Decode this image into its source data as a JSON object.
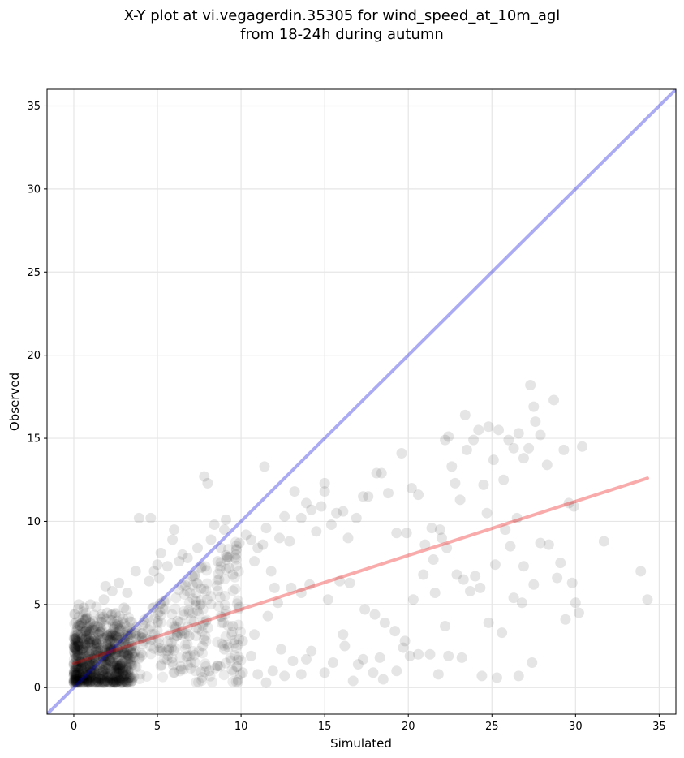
{
  "figure": {
    "title_line1": "X-Y plot at vi.vegagerdin.35305 for wind_speed_at_10m_agl",
    "title_line2": "from 18-24h during autumn"
  },
  "chart_data": {
    "type": "scatter",
    "title": "X-Y plot at vi.vegagerdin.35305 for wind_speed_at_10m_agl from 18-24h during autumn",
    "xlabel": "Simulated",
    "ylabel": "Observed",
    "xlim": [
      -1.6,
      36
    ],
    "ylim": [
      -1.6,
      36
    ],
    "xticks": [
      0,
      5,
      10,
      15,
      20,
      25,
      30,
      35
    ],
    "yticks": [
      0,
      5,
      10,
      15,
      20,
      25,
      30,
      35
    ],
    "grid": true,
    "colors": {
      "points": "#000000",
      "identity_line": "#0000dd",
      "fit_line": "#ee0000"
    },
    "identity_line": {
      "x": [
        -1.6,
        36
      ],
      "y": [
        -1.6,
        36
      ]
    },
    "fit_line": {
      "x": [
        0,
        34.3
      ],
      "y": [
        1.45,
        12.6
      ]
    },
    "point_groups": [
      {
        "name": "dense cluster near origin",
        "x": [
          0.0,
          3.5
        ],
        "y": [
          0.3,
          5.0
        ]
      }
    ],
    "points": [
      [
        0.5,
        3.6
      ],
      [
        0.8,
        4.2
      ],
      [
        1.2,
        2.8
      ],
      [
        1.5,
        3.2
      ],
      [
        2.0,
        4.5
      ],
      [
        2.5,
        3.8
      ],
      [
        3.0,
        4.8
      ],
      [
        1.0,
        5.0
      ],
      [
        0.3,
        5.0
      ],
      [
        1.9,
        6.1
      ],
      [
        3.2,
        5.7
      ],
      [
        3.7,
        7.0
      ],
      [
        2.3,
        5.8
      ],
      [
        0.6,
        4.8
      ],
      [
        1.8,
        5.3
      ],
      [
        2.7,
        6.3
      ],
      [
        3.9,
        10.2
      ],
      [
        4.6,
        10.2
      ],
      [
        4.5,
        6.4
      ],
      [
        4.8,
        7.0
      ],
      [
        5.0,
        7.4
      ],
      [
        5.1,
        6.6
      ],
      [
        5.2,
        8.1
      ],
      [
        5.6,
        7.3
      ],
      [
        5.9,
        8.9
      ],
      [
        6.0,
        9.5
      ],
      [
        6.3,
        7.6
      ],
      [
        6.5,
        8.0
      ],
      [
        6.8,
        7.8
      ],
      [
        7.1,
        6.7
      ],
      [
        7.4,
        8.4
      ],
      [
        7.6,
        7.2
      ],
      [
        7.8,
        12.7
      ],
      [
        8.0,
        12.3
      ],
      [
        8.2,
        8.9
      ],
      [
        8.4,
        9.8
      ],
      [
        8.6,
        7.6
      ],
      [
        8.8,
        8.4
      ],
      [
        9.0,
        9.5
      ],
      [
        9.1,
        10.1
      ],
      [
        9.3,
        7.2
      ],
      [
        9.5,
        6.8
      ],
      [
        9.7,
        8.0
      ],
      [
        9.9,
        8.7
      ],
      [
        6.2,
        4.0
      ],
      [
        6.9,
        3.1
      ],
      [
        7.3,
        5.2
      ],
      [
        7.7,
        2.5
      ],
      [
        8.1,
        1.0
      ],
      [
        8.6,
        1.3
      ],
      [
        9.0,
        2.3
      ],
      [
        9.5,
        3.7
      ],
      [
        10.1,
        2.8
      ],
      [
        10.3,
        9.2
      ],
      [
        10.6,
        8.9
      ],
      [
        10.8,
        7.6
      ],
      [
        11.0,
        8.4
      ],
      [
        11.3,
        8.6
      ],
      [
        11.5,
        9.6
      ],
      [
        11.8,
        7.0
      ],
      [
        12.0,
        6.0
      ],
      [
        12.3,
        9.0
      ],
      [
        12.6,
        10.3
      ],
      [
        12.9,
        8.8
      ],
      [
        11.4,
        13.3
      ],
      [
        13.2,
        11.8
      ],
      [
        13.6,
        10.2
      ],
      [
        13.9,
        11.1
      ],
      [
        14.2,
        10.7
      ],
      [
        14.5,
        9.4
      ],
      [
        14.8,
        10.9
      ],
      [
        15.0,
        11.8
      ],
      [
        15.0,
        12.3
      ],
      [
        15.4,
        9.8
      ],
      [
        15.7,
        10.5
      ],
      [
        16.1,
        10.6
      ],
      [
        16.4,
        9.0
      ],
      [
        16.9,
        10.2
      ],
      [
        17.3,
        11.5
      ],
      [
        17.6,
        11.5
      ],
      [
        18.1,
        12.9
      ],
      [
        18.4,
        12.9
      ],
      [
        18.8,
        11.7
      ],
      [
        19.3,
        9.3
      ],
      [
        19.6,
        14.1
      ],
      [
        19.9,
        9.3
      ],
      [
        20.2,
        12.0
      ],
      [
        20.6,
        11.6
      ],
      [
        21.0,
        8.6
      ],
      [
        21.4,
        9.6
      ],
      [
        21.9,
        9.5
      ],
      [
        22.2,
        14.9
      ],
      [
        22.4,
        15.1
      ],
      [
        22.6,
        13.3
      ],
      [
        22.8,
        12.3
      ],
      [
        23.1,
        11.3
      ],
      [
        23.4,
        16.4
      ],
      [
        23.5,
        14.3
      ],
      [
        23.9,
        14.9
      ],
      [
        24.2,
        15.5
      ],
      [
        24.5,
        12.2
      ],
      [
        24.8,
        15.7
      ],
      [
        25.1,
        13.7
      ],
      [
        25.4,
        15.5
      ],
      [
        25.7,
        12.5
      ],
      [
        26.0,
        14.9
      ],
      [
        26.3,
        14.4
      ],
      [
        26.6,
        15.3
      ],
      [
        26.9,
        13.8
      ],
      [
        27.2,
        14.4
      ],
      [
        27.3,
        18.2
      ],
      [
        27.5,
        16.9
      ],
      [
        27.6,
        16.0
      ],
      [
        27.9,
        15.2
      ],
      [
        28.3,
        13.4
      ],
      [
        28.7,
        17.3
      ],
      [
        29.3,
        14.3
      ],
      [
        29.6,
        11.1
      ],
      [
        29.9,
        10.9
      ],
      [
        30.4,
        14.5
      ],
      [
        24.0,
        6.7
      ],
      [
        24.3,
        6.0
      ],
      [
        24.7,
        10.5
      ],
      [
        25.2,
        7.4
      ],
      [
        25.8,
        9.5
      ],
      [
        26.1,
        8.5
      ],
      [
        26.5,
        10.2
      ],
      [
        26.9,
        7.3
      ],
      [
        27.5,
        6.2
      ],
      [
        27.9,
        8.7
      ],
      [
        28.4,
        8.6
      ],
      [
        28.9,
        6.6
      ],
      [
        29.1,
        7.5
      ],
      [
        29.4,
        4.1
      ],
      [
        29.8,
        6.3
      ],
      [
        30.0,
        5.1
      ],
      [
        30.2,
        4.5
      ],
      [
        31.7,
        8.8
      ],
      [
        33.9,
        7.0
      ],
      [
        34.3,
        5.3
      ],
      [
        26.3,
        5.4
      ],
      [
        26.8,
        5.1
      ],
      [
        27.4,
        1.5
      ],
      [
        26.6,
        0.7
      ],
      [
        25.3,
        0.6
      ],
      [
        24.4,
        0.7
      ],
      [
        25.6,
        3.3
      ],
      [
        24.8,
        3.9
      ],
      [
        23.2,
        1.8
      ],
      [
        22.4,
        1.9
      ],
      [
        21.8,
        0.8
      ],
      [
        21.3,
        2.0
      ],
      [
        20.6,
        2.0
      ],
      [
        20.1,
        1.9
      ],
      [
        19.8,
        2.8
      ],
      [
        19.3,
        1.0
      ],
      [
        18.5,
        0.5
      ],
      [
        17.9,
        0.9
      ],
      [
        17.3,
        1.7
      ],
      [
        16.7,
        0.4
      ],
      [
        16.1,
        3.2
      ],
      [
        15.5,
        1.5
      ],
      [
        15.0,
        0.9
      ],
      [
        14.2,
        2.2
      ],
      [
        13.6,
        0.8
      ],
      [
        13.1,
        1.6
      ],
      [
        12.6,
        0.7
      ],
      [
        11.9,
        1.0
      ],
      [
        11.5,
        0.3
      ],
      [
        11.0,
        0.8
      ],
      [
        10.6,
        1.9
      ],
      [
        10.1,
        0.9
      ],
      [
        10.8,
        3.2
      ],
      [
        11.6,
        4.3
      ],
      [
        12.2,
        5.1
      ],
      [
        13.0,
        6.0
      ],
      [
        13.6,
        5.7
      ],
      [
        14.1,
        6.2
      ],
      [
        15.2,
        5.3
      ],
      [
        15.9,
        6.4
      ],
      [
        16.5,
        6.3
      ],
      [
        17.4,
        4.7
      ],
      [
        18.0,
        4.4
      ],
      [
        18.6,
        3.9
      ],
      [
        19.2,
        3.4
      ],
      [
        19.7,
        2.4
      ],
      [
        20.3,
        5.3
      ],
      [
        20.9,
        6.8
      ],
      [
        21.5,
        7.7
      ],
      [
        22.0,
        9.0
      ],
      [
        22.3,
        8.4
      ],
      [
        22.9,
        6.8
      ],
      [
        23.3,
        6.5
      ],
      [
        23.7,
        5.8
      ],
      [
        22.2,
        3.7
      ],
      [
        21.6,
        5.7
      ],
      [
        16.2,
        2.5
      ],
      [
        17.0,
        1.4
      ],
      [
        18.3,
        1.8
      ],
      [
        12.4,
        2.3
      ],
      [
        13.9,
        1.7
      ]
    ]
  }
}
